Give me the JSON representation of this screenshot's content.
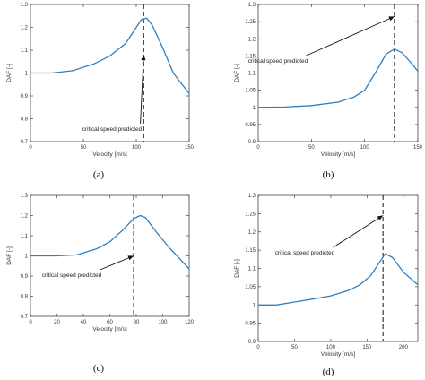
{
  "colors": {
    "series": "#2f7fc1",
    "axis": "#444444",
    "marker": "#111111"
  },
  "chart_data": [
    {
      "type": "line",
      "caption": "(a)",
      "xlabel": "Velocity [m/s]",
      "ylabel": "DAF [-]",
      "xlim": [
        0,
        150
      ],
      "ylim": [
        0.7,
        1.3
      ],
      "xticks": [
        0,
        50,
        100,
        150
      ],
      "yticks": [
        0.7,
        0.8,
        0.9,
        1,
        1.1,
        1.2,
        1.3
      ],
      "critical_speed": 107,
      "annotation": {
        "text": "critical speed predicted",
        "arrow_to": [
          107,
          1.08
        ]
      },
      "series": [
        {
          "x": [
            0,
            20,
            40,
            60,
            75,
            90,
            100,
            105,
            110,
            115,
            125,
            135,
            150
          ],
          "y": [
            1.0,
            1.0,
            1.01,
            1.04,
            1.075,
            1.13,
            1.2,
            1.235,
            1.24,
            1.21,
            1.11,
            1.0,
            0.91
          ]
        }
      ]
    },
    {
      "type": "line",
      "caption": "(b)",
      "xlabel": "Velocity [m/s]",
      "ylabel": "DAF [-]",
      "xlim": [
        0,
        150
      ],
      "ylim": [
        0.9,
        1.3
      ],
      "xticks": [
        0,
        50,
        100,
        150
      ],
      "yticks": [
        0.9,
        0.95,
        1,
        1.05,
        1.1,
        1.15,
        1.2,
        1.25,
        1.3
      ],
      "critical_speed": 128,
      "annotation": {
        "text": "critical speed predicted",
        "arrow_to": [
          128,
          1.265
        ]
      },
      "series": [
        {
          "x": [
            0,
            25,
            50,
            75,
            90,
            100,
            110,
            120,
            128,
            135,
            145,
            150
          ],
          "y": [
            1.0,
            1.001,
            1.005,
            1.015,
            1.03,
            1.05,
            1.1,
            1.155,
            1.17,
            1.16,
            1.125,
            1.105
          ]
        }
      ]
    },
    {
      "type": "line",
      "caption": "(c)",
      "xlabel": "Velocity [m/s]",
      "ylabel": "DAF [-]",
      "xlim": [
        0,
        120
      ],
      "ylim": [
        0.7,
        1.3
      ],
      "xticks": [
        0,
        20,
        40,
        60,
        80,
        100,
        120
      ],
      "yticks": [
        0.7,
        0.8,
        0.9,
        1,
        1.1,
        1.2,
        1.3
      ],
      "critical_speed": 78,
      "annotation": {
        "text": "critical speed predicted",
        "arrow_to": [
          78,
          1.0
        ]
      },
      "series": [
        {
          "x": [
            0,
            20,
            35,
            50,
            60,
            70,
            78,
            83,
            87,
            95,
            105,
            120
          ],
          "y": [
            1.0,
            1.0,
            1.005,
            1.035,
            1.07,
            1.13,
            1.185,
            1.2,
            1.19,
            1.12,
            1.04,
            0.935
          ]
        }
      ]
    },
    {
      "type": "line",
      "caption": "(d)",
      "xlabel": "Velocity [m/s]",
      "ylabel": "DAF [-]",
      "xlim": [
        0,
        220
      ],
      "ylim": [
        0.9,
        1.3
      ],
      "xticks": [
        0,
        50,
        100,
        150,
        200
      ],
      "yticks": [
        0.9,
        0.95,
        1,
        1.05,
        1.1,
        1.15,
        1.2,
        1.25,
        1.3
      ],
      "critical_speed": 172,
      "annotation": {
        "text": "critical speed predicted",
        "arrow_to": [
          172,
          1.245
        ]
      },
      "series": [
        {
          "x": [
            0,
            25,
            50,
            75,
            100,
            125,
            140,
            155,
            165,
            175,
            185,
            200,
            220
          ],
          "y": [
            1.0,
            1.0,
            1.008,
            1.016,
            1.025,
            1.04,
            1.055,
            1.08,
            1.11,
            1.14,
            1.13,
            1.09,
            1.055
          ]
        }
      ]
    }
  ]
}
